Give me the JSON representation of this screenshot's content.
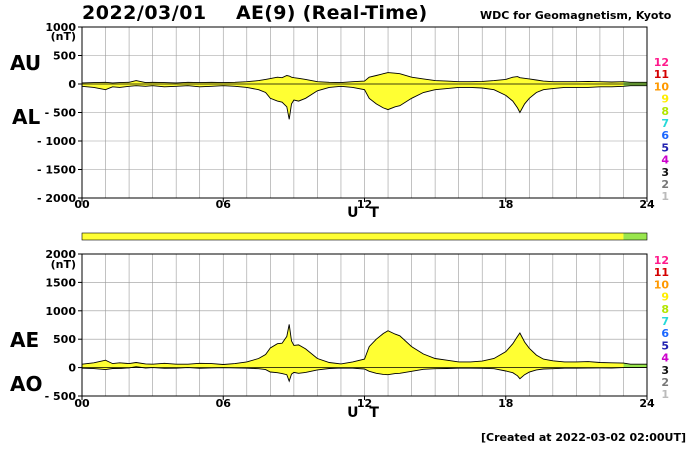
{
  "header": {
    "date": "2022/03/01",
    "title": "AE(9)  (Real-Time)",
    "credit": "WDC for Geomagnetism, Kyoto"
  },
  "footer": {
    "created": "[Created at 2022-03-02 02:00UT]"
  },
  "colors": {
    "fill": "#ffff33",
    "fill_last_hours": "#99e64d",
    "trace": "#000000",
    "grid": "#9a9a9a"
  },
  "station_legend": {
    "labels": [
      "12",
      "11",
      "10",
      "9",
      "8",
      "7",
      "6",
      "5",
      "4",
      "3",
      "2",
      "1"
    ],
    "colors": [
      "#ff1a8c",
      "#d40000",
      "#ff9900",
      "#ffee00",
      "#b3e600",
      "#26d9d9",
      "#1a66ff",
      "#2020b0",
      "#cc00cc",
      "#111111",
      "#777777",
      "#bbbbbb"
    ]
  },
  "status_bar": {
    "segments": [
      {
        "from_ut": 0,
        "to_ut": 23,
        "color": "#ffff33"
      },
      {
        "from_ut": 23,
        "to_ut": 24,
        "color": "#99e64d"
      }
    ]
  },
  "chart_data": [
    {
      "type": "area",
      "name": "au-al-panel",
      "xlabel": "U T",
      "unit": "(nT)",
      "upper_label": "AU",
      "lower_label": "AL",
      "xlim": [
        0,
        24
      ],
      "ylim": [
        -2000,
        1000
      ],
      "xticks": [
        0,
        6,
        12,
        18,
        24
      ],
      "xtick_labels": [
        "00",
        "06",
        "12",
        "18",
        "24"
      ],
      "yticks": [
        1000,
        500,
        0,
        -500,
        -1000,
        -1500,
        -2000
      ],
      "ytick_labels": [
        "1000",
        "500",
        "0",
        "- 500",
        "- 1000",
        "- 1500",
        "- 2000"
      ],
      "grid": true,
      "x": [
        0,
        0.5,
        1,
        1.3,
        1.6,
        2,
        2.3,
        2.7,
        3,
        3.5,
        4,
        4.5,
        5,
        5.5,
        6,
        6.5,
        7,
        7.5,
        7.8,
        8,
        8.3,
        8.5,
        8.7,
        8.8,
        8.9,
        9,
        9.2,
        9.5,
        10,
        10.5,
        11,
        11.5,
        12,
        12.2,
        12.5,
        12.8,
        13,
        13.3,
        13.5,
        14,
        14.5,
        15,
        15.5,
        16,
        16.5,
        17,
        17.5,
        18,
        18.3,
        18.5,
        18.6,
        18.8,
        19,
        19.3,
        19.6,
        20,
        20.5,
        21,
        21.5,
        22,
        22.5,
        23,
        23.3,
        23.6,
        24
      ],
      "series": [
        {
          "name": "AU",
          "values": [
            20,
            25,
            30,
            20,
            25,
            30,
            60,
            25,
            30,
            25,
            20,
            30,
            25,
            30,
            25,
            30,
            40,
            60,
            80,
            95,
            120,
            110,
            150,
            140,
            120,
            110,
            100,
            80,
            40,
            30,
            25,
            40,
            50,
            120,
            150,
            180,
            200,
            190,
            180,
            120,
            90,
            60,
            50,
            40,
            40,
            45,
            60,
            80,
            120,
            130,
            110,
            100,
            90,
            70,
            50,
            40,
            40,
            40,
            45,
            40,
            35,
            40,
            30,
            30,
            30
          ]
        },
        {
          "name": "AL",
          "values": [
            -40,
            -60,
            -100,
            -50,
            -60,
            -40,
            -30,
            -40,
            -30,
            -50,
            -40,
            -30,
            -50,
            -40,
            -30,
            -40,
            -60,
            -100,
            -150,
            -250,
            -300,
            -320,
            -400,
            -620,
            -350,
            -280,
            -300,
            -250,
            -120,
            -60,
            -40,
            -60,
            -100,
            -250,
            -350,
            -420,
            -450,
            -400,
            -380,
            -250,
            -150,
            -100,
            -80,
            -60,
            -60,
            -70,
            -100,
            -200,
            -300,
            -420,
            -500,
            -350,
            -250,
            -150,
            -100,
            -80,
            -60,
            -60,
            -60,
            -50,
            -50,
            -40,
            -30,
            -30,
            -30
          ]
        }
      ]
    },
    {
      "type": "area",
      "name": "ae-ao-panel",
      "xlabel": "U T",
      "unit": "(nT)",
      "upper_label": "AE",
      "lower_label": "AO",
      "xlim": [
        0,
        24
      ],
      "ylim": [
        -500,
        2000
      ],
      "xticks": [
        0,
        6,
        12,
        18,
        24
      ],
      "xtick_labels": [
        "00",
        "06",
        "12",
        "18",
        "24"
      ],
      "yticks": [
        2000,
        1500,
        1000,
        500,
        0,
        -500
      ],
      "ytick_labels": [
        "2000",
        "1500",
        "1000",
        "500",
        "0",
        "- 500"
      ],
      "grid": true,
      "x": [
        0,
        0.5,
        1,
        1.3,
        1.6,
        2,
        2.3,
        2.7,
        3,
        3.5,
        4,
        4.5,
        5,
        5.5,
        6,
        6.5,
        7,
        7.5,
        7.8,
        8,
        8.3,
        8.5,
        8.7,
        8.8,
        8.9,
        9,
        9.2,
        9.5,
        10,
        10.5,
        11,
        11.5,
        12,
        12.2,
        12.5,
        12.8,
        13,
        13.3,
        13.5,
        14,
        14.5,
        15,
        15.5,
        16,
        16.5,
        17,
        17.5,
        18,
        18.3,
        18.5,
        18.6,
        18.8,
        19,
        19.3,
        19.6,
        20,
        20.5,
        21,
        21.5,
        22,
        22.5,
        23,
        23.3,
        23.6,
        24
      ],
      "series": [
        {
          "name": "AE",
          "values": [
            60,
            85,
            130,
            70,
            85,
            70,
            90,
            65,
            60,
            75,
            60,
            60,
            75,
            70,
            55,
            70,
            100,
            160,
            230,
            345,
            420,
            430,
            550,
            760,
            470,
            390,
            400,
            330,
            160,
            90,
            65,
            100,
            150,
            370,
            500,
            600,
            650,
            590,
            560,
            370,
            240,
            160,
            130,
            100,
            100,
            115,
            160,
            280,
            420,
            550,
            610,
            450,
            340,
            220,
            150,
            120,
            100,
            100,
            105,
            90,
            85,
            80,
            60,
            60,
            60
          ]
        },
        {
          "name": "AO",
          "values": [
            -10,
            -17,
            -35,
            -15,
            -17,
            -5,
            15,
            -7,
            0,
            -12,
            -10,
            0,
            -12,
            -5,
            -2,
            -5,
            -10,
            -20,
            -35,
            -78,
            -90,
            -105,
            -125,
            -240,
            -115,
            -85,
            -100,
            -85,
            -40,
            -15,
            -7,
            -10,
            -25,
            -65,
            -100,
            -120,
            -125,
            -105,
            -100,
            -65,
            -30,
            -20,
            -15,
            -10,
            -10,
            -12,
            -20,
            -60,
            -90,
            -145,
            -195,
            -125,
            -80,
            -40,
            -25,
            -20,
            -10,
            -10,
            -7,
            -5,
            -7,
            0,
            0,
            0,
            0
          ]
        }
      ]
    }
  ]
}
